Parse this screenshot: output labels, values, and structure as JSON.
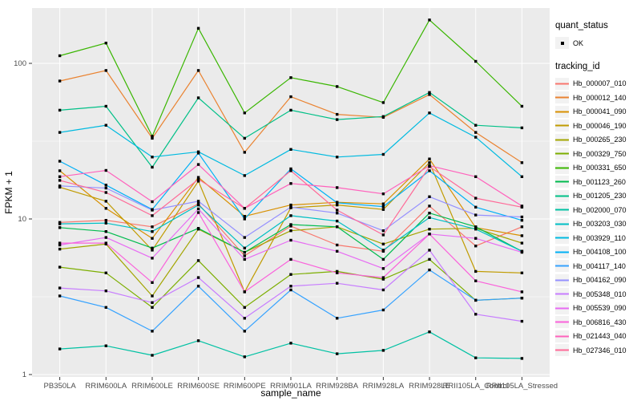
{
  "figure": {
    "bg": "#FFFFFF",
    "panel_bg": "#EBEBEB",
    "grid_color": "#FFFFFF",
    "tick_color": "#333333",
    "tick_label_color": "#4D4D4D",
    "point_color": "#000000"
  },
  "chart_data": {
    "type": "line",
    "title": "",
    "xlabel": "sample_name",
    "ylabel": "FPKM + 1",
    "y_scale": "log10",
    "ylim": [
      0.97,
      227
    ],
    "y_ticks": [
      1,
      10,
      100
    ],
    "y_minor_ticks": [
      3.162,
      31.62
    ],
    "grid": true,
    "legend_position": "right",
    "point_marker": "small black square (quant_status OK)",
    "categories": [
      "PB350LA",
      "RRIM600LA",
      "RRIM600LE",
      "RRIM600SE",
      "RRIM600PE",
      "RRIM901LA",
      "RRIM928BA",
      "RRIM928LA",
      "RRIM928LE",
      "RRII105LA_Control",
      "RRII105LA_Stressed"
    ],
    "legend": {
      "quant_status": {
        "title": "quant_status",
        "items": [
          {
            "label": "OK",
            "symbol": "point"
          }
        ]
      },
      "tracking_id": {
        "title": "tracking_id"
      }
    },
    "series": [
      {
        "name": "Hb_000007_010",
        "color": "#F8766D",
        "values": [
          9.5,
          9.8,
          8.9,
          12.5,
          5.8,
          9.0,
          6.8,
          6.2,
          12.1,
          6.7,
          8.9
        ]
      },
      {
        "name": "Hb_000012_140",
        "color": "#EA8331",
        "values": [
          77,
          90,
          33,
          90,
          26.8,
          61,
          47,
          45,
          63,
          36,
          23
        ]
      },
      {
        "name": "Hb_000041_090",
        "color": "#D89000",
        "values": [
          20.4,
          11.7,
          7.5,
          18.5,
          10.4,
          12.3,
          12.8,
          12.5,
          24.3,
          8.8,
          7.8
        ]
      },
      {
        "name": "Hb_000046_190",
        "color": "#C09B00",
        "values": [
          16.0,
          13.0,
          6.3,
          17.5,
          3.4,
          11.8,
          12.3,
          11.5,
          23.0,
          4.6,
          4.5
        ]
      },
      {
        "name": "Hb_000265_230",
        "color": "#A3A500",
        "values": [
          6.4,
          6.9,
          3.2,
          8.6,
          6.1,
          8.4,
          8.9,
          6.9,
          8.6,
          8.7,
          7.0
        ]
      },
      {
        "name": "Hb_000329_750",
        "color": "#7CAE00",
        "values": [
          4.9,
          4.5,
          2.7,
          5.4,
          2.7,
          4.4,
          4.6,
          4.1,
          5.5,
          3.0,
          3.1
        ]
      },
      {
        "name": "Hb_000331_650",
        "color": "#39B600",
        "values": [
          112,
          135,
          34,
          168,
          48,
          81,
          71,
          56,
          190,
          103,
          53
        ]
      },
      {
        "name": "Hb_001123_260",
        "color": "#00BB4E",
        "values": [
          8.8,
          8.3,
          6.5,
          8.7,
          6.1,
          9.2,
          8.9,
          5.5,
          10.9,
          8.9,
          6.2
        ]
      },
      {
        "name": "Hb_001205_230",
        "color": "#00C087",
        "values": [
          50,
          53,
          21.5,
          60,
          33,
          50,
          43.5,
          45.5,
          65,
          40,
          38.5
        ]
      },
      {
        "name": "Hb_002000_070",
        "color": "#00C1A3",
        "values": [
          1.46,
          1.53,
          1.33,
          1.65,
          1.3,
          1.59,
          1.36,
          1.43,
          1.88,
          1.28,
          1.27
        ]
      },
      {
        "name": "Hb_003203_030",
        "color": "#00BFC4",
        "values": [
          9.3,
          9.4,
          8.3,
          12.3,
          6.5,
          10.5,
          9.7,
          6.3,
          10.2,
          8.6,
          6.2
        ]
      },
      {
        "name": "Hb_003929_110",
        "color": "#00BAE0",
        "values": [
          36,
          40,
          25,
          27,
          19,
          28,
          25,
          26,
          48,
          33.5,
          18.7
        ]
      },
      {
        "name": "Hb_004108_100",
        "color": "#00B0F6",
        "values": [
          23.5,
          16.5,
          11.5,
          26.5,
          10,
          21,
          12.7,
          12.0,
          20.4,
          11.9,
          9.8
        ]
      },
      {
        "name": "Hb_004117_140",
        "color": "#35A2FF",
        "values": [
          3.2,
          2.7,
          1.9,
          3.7,
          1.9,
          3.5,
          2.3,
          2.6,
          4.7,
          3.0,
          3.1
        ]
      },
      {
        "name": "Hb_004162_090",
        "color": "#9590FF",
        "values": [
          16.3,
          15.8,
          11.4,
          13.0,
          7.6,
          11.9,
          10.9,
          8.4,
          13.9,
          10.6,
          10.3
        ]
      },
      {
        "name": "Hb_005348_010",
        "color": "#C77CFF",
        "values": [
          3.6,
          3.45,
          2.9,
          4.2,
          2.3,
          3.7,
          3.86,
          3.5,
          6.3,
          2.44,
          2.2
        ]
      },
      {
        "name": "Hb_005539_090",
        "color": "#E76BF3",
        "values": [
          6.8,
          7.6,
          5.6,
          11.6,
          5.5,
          7.3,
          6.2,
          4.8,
          8.0,
          7.5,
          6.1
        ]
      },
      {
        "name": "Hb_006816_430",
        "color": "#FA62DB",
        "values": [
          7.0,
          7.0,
          3.9,
          11.0,
          3.4,
          5.5,
          4.5,
          4.2,
          8.0,
          4.0,
          3.4
        ]
      },
      {
        "name": "Hb_021443_040",
        "color": "#FF62BC",
        "values": [
          18.7,
          20.5,
          12.9,
          22.4,
          11.7,
          16.9,
          15.9,
          14.5,
          22.0,
          18.7,
          12.1
        ]
      },
      {
        "name": "Hb_027346_010",
        "color": "#FF6A98",
        "values": [
          17.7,
          14.8,
          10.5,
          18.0,
          11.7,
          20.4,
          11.4,
          7.9,
          21.7,
          13.6,
          11.9
        ]
      }
    ]
  }
}
